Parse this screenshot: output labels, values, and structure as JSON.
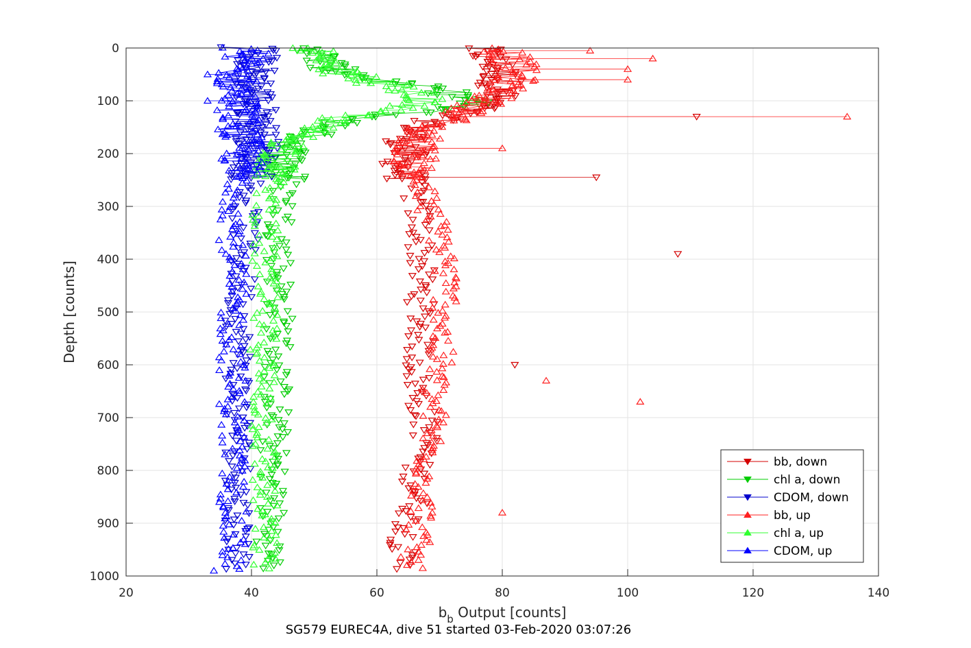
{
  "chart_data": {
    "type": "scatter",
    "xlabel_main": "b",
    "xlabel_sub": "b",
    "xlabel_rest": " Output [counts]",
    "ylabel": "Depth [counts]",
    "caption": "SG579 EUREC4A, dive 51 started 03-Feb-2020 03:07:26",
    "xlim": [
      20,
      140
    ],
    "ylim": [
      1000,
      0
    ],
    "y_reversed": true,
    "grid": true,
    "legend_position": "bottom-right",
    "x_ticks": [
      "20",
      "40",
      "60",
      "80",
      "100",
      "120",
      "140"
    ],
    "y_ticks": [
      "0",
      "100",
      "200",
      "300",
      "400",
      "500",
      "600",
      "700",
      "800",
      "900",
      "1000"
    ],
    "series": [
      {
        "name": "bb, down",
        "color": "#d40000",
        "marker": "triangle-down",
        "profile": [
          [
            0,
            76
          ],
          [
            30,
            79
          ],
          [
            60,
            80
          ],
          [
            90,
            79
          ],
          [
            110,
            77
          ],
          [
            130,
            71
          ],
          [
            150,
            67
          ],
          [
            170,
            65
          ],
          [
            200,
            64.5
          ],
          [
            230,
            64
          ],
          [
            260,
            65.5
          ],
          [
            300,
            66.5
          ],
          [
            350,
            67
          ],
          [
            400,
            67
          ],
          [
            450,
            67
          ],
          [
            500,
            67
          ],
          [
            550,
            67
          ],
          [
            600,
            66.5
          ],
          [
            650,
            66.5
          ],
          [
            700,
            67.5
          ],
          [
            750,
            68
          ],
          [
            800,
            66
          ],
          [
            850,
            66.5
          ],
          [
            900,
            65
          ],
          [
            950,
            64
          ],
          [
            990,
            64
          ]
        ],
        "spikes": [
          [
            130,
            111
          ],
          [
            245,
            95
          ],
          [
            390,
            108
          ],
          [
            600,
            82
          ]
        ]
      },
      {
        "name": "chl a, down",
        "color": "#00cc00",
        "marker": "triangle-down",
        "profile": [
          [
            0,
            50.5
          ],
          [
            20,
            51
          ],
          [
            40,
            53
          ],
          [
            60,
            60
          ],
          [
            80,
            70
          ],
          [
            100,
            75.5
          ],
          [
            115,
            71
          ],
          [
            135,
            56
          ],
          [
            160,
            50
          ],
          [
            190,
            46
          ],
          [
            220,
            45.5
          ],
          [
            260,
            45.5
          ],
          [
            300,
            45
          ],
          [
            350,
            44.5
          ],
          [
            400,
            44.5
          ],
          [
            450,
            44.5
          ],
          [
            500,
            44.5
          ],
          [
            550,
            44.5
          ],
          [
            600,
            44
          ],
          [
            650,
            44
          ],
          [
            700,
            44
          ],
          [
            750,
            43.5
          ],
          [
            800,
            43.5
          ],
          [
            850,
            43.5
          ],
          [
            900,
            43
          ],
          [
            950,
            43
          ],
          [
            990,
            43
          ]
        ],
        "spikes": []
      },
      {
        "name": "CDOM, down",
        "color": "#0000cc",
        "marker": "triangle-down",
        "profile": [
          [
            0,
            41
          ],
          [
            50,
            40.5
          ],
          [
            100,
            40.5
          ],
          [
            150,
            41
          ],
          [
            200,
            41
          ],
          [
            250,
            40
          ],
          [
            300,
            39
          ],
          [
            350,
            39
          ],
          [
            400,
            38.5
          ],
          [
            450,
            38.5
          ],
          [
            500,
            38
          ],
          [
            550,
            38
          ],
          [
            600,
            38
          ],
          [
            650,
            38
          ],
          [
            700,
            38
          ],
          [
            750,
            38
          ],
          [
            800,
            38
          ],
          [
            850,
            38
          ],
          [
            900,
            38
          ],
          [
            950,
            38
          ],
          [
            990,
            38
          ]
        ],
        "spikes": []
      },
      {
        "name": "bb, up",
        "color": "#ff2020",
        "marker": "triangle-up",
        "profile": [
          [
            0,
            80
          ],
          [
            30,
            82
          ],
          [
            60,
            82
          ],
          [
            90,
            79
          ],
          [
            110,
            76
          ],
          [
            130,
            73
          ],
          [
            150,
            68
          ],
          [
            170,
            67
          ],
          [
            200,
            66
          ],
          [
            230,
            66
          ],
          [
            260,
            67
          ],
          [
            300,
            68
          ],
          [
            350,
            70
          ],
          [
            400,
            71
          ],
          [
            450,
            71
          ],
          [
            500,
            71
          ],
          [
            550,
            70
          ],
          [
            600,
            70
          ],
          [
            650,
            69
          ],
          [
            700,
            69
          ],
          [
            750,
            68.5
          ],
          [
            800,
            68
          ],
          [
            850,
            67.5
          ],
          [
            900,
            67
          ],
          [
            950,
            66
          ],
          [
            990,
            65
          ]
        ],
        "spikes": [
          [
            5,
            94
          ],
          [
            20,
            104
          ],
          [
            40,
            100
          ],
          [
            60,
            100
          ],
          [
            130,
            135
          ],
          [
            190,
            80
          ],
          [
            670,
            102
          ],
          [
            630,
            87
          ],
          [
            880,
            80
          ]
        ]
      },
      {
        "name": "chl a, up",
        "color": "#30ff30",
        "marker": "triangle-up",
        "profile": [
          [
            0,
            50
          ],
          [
            30,
            50
          ],
          [
            60,
            58
          ],
          [
            80,
            65
          ],
          [
            100,
            68
          ],
          [
            115,
            62
          ],
          [
            130,
            55
          ],
          [
            150,
            50
          ],
          [
            170,
            47
          ],
          [
            200,
            45
          ],
          [
            230,
            43.5
          ],
          [
            260,
            43
          ],
          [
            300,
            42.5
          ],
          [
            350,
            42
          ],
          [
            400,
            42
          ],
          [
            450,
            42
          ],
          [
            500,
            42
          ],
          [
            550,
            42
          ],
          [
            600,
            42
          ],
          [
            650,
            42
          ],
          [
            700,
            42
          ],
          [
            750,
            42
          ],
          [
            800,
            42
          ],
          [
            850,
            42
          ],
          [
            900,
            42
          ],
          [
            950,
            42
          ],
          [
            990,
            42
          ]
        ],
        "spikes": []
      },
      {
        "name": "CDOM, up",
        "color": "#0000ff",
        "marker": "triangle-up",
        "profile": [
          [
            0,
            40
          ],
          [
            50,
            37.5
          ],
          [
            100,
            38
          ],
          [
            150,
            38
          ],
          [
            200,
            38.5
          ],
          [
            250,
            38
          ],
          [
            300,
            37.5
          ],
          [
            350,
            37
          ],
          [
            400,
            37
          ],
          [
            450,
            37
          ],
          [
            500,
            37
          ],
          [
            550,
            37
          ],
          [
            600,
            37
          ],
          [
            650,
            37
          ],
          [
            700,
            37
          ],
          [
            750,
            37
          ],
          [
            800,
            37
          ],
          [
            850,
            37
          ],
          [
            900,
            37
          ],
          [
            950,
            37
          ],
          [
            990,
            37
          ]
        ],
        "spikes": [
          [
            50,
            33
          ],
          [
            100,
            33
          ],
          [
            990,
            34
          ]
        ]
      }
    ]
  }
}
